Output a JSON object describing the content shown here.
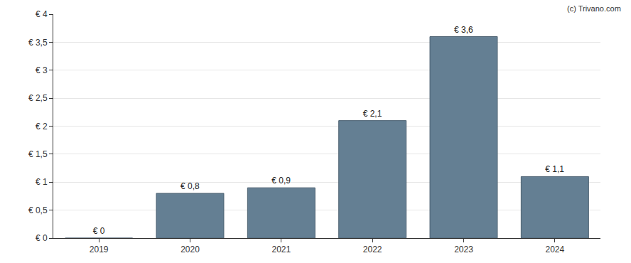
{
  "chart_data": {
    "type": "bar",
    "categories": [
      "2019",
      "2020",
      "2021",
      "2022",
      "2023",
      "2024"
    ],
    "values": [
      0,
      0.8,
      0.9,
      2.1,
      3.6,
      1.1
    ],
    "value_labels": [
      "€ 0",
      "€ 0,8",
      "€ 0,9",
      "€ 2,1",
      "€ 3,6",
      "€ 1,1"
    ],
    "data_labels": true,
    "color": "#647f93",
    "ylim": [
      0,
      4
    ],
    "yticks": [
      {
        "value": 0,
        "label": "€ 0"
      },
      {
        "value": 0.5,
        "label": "€ 0,5"
      },
      {
        "value": 1,
        "label": "€ 1"
      },
      {
        "value": 1.5,
        "label": "€ 1,5"
      },
      {
        "value": 2,
        "label": "€ 2"
      },
      {
        "value": 2.5,
        "label": "€ 2,5"
      },
      {
        "value": 3,
        "label": "€ 3"
      },
      {
        "value": 3.5,
        "label": "€ 3,5"
      },
      {
        "value": 4,
        "label": "€ 4"
      }
    ],
    "grid": true,
    "annotations": [
      "(c) Trivano.com"
    ]
  }
}
